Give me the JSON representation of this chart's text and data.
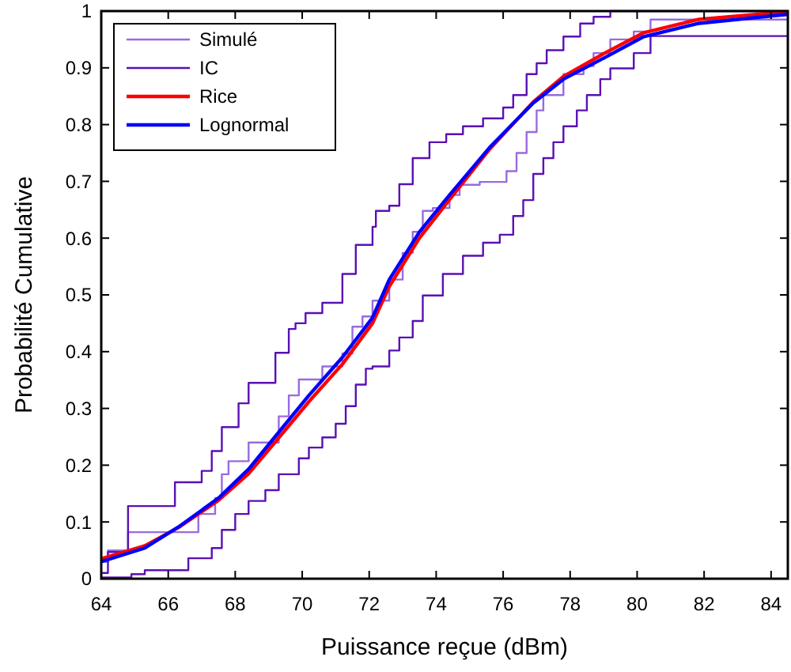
{
  "chart_data": {
    "type": "step",
    "xlabel": "Puissance reçue (dBm)",
    "ylabel": "Probabilité Cumulative",
    "xlim": [
      64,
      84.5
    ],
    "xticks": [
      64,
      66,
      68,
      70,
      72,
      74,
      76,
      78,
      80,
      82,
      84
    ],
    "ylim": [
      0,
      1
    ],
    "yticks": [
      0,
      0.1,
      0.2,
      0.3,
      0.4,
      0.5,
      0.6,
      0.7,
      0.8,
      0.9,
      1
    ],
    "grid": false,
    "legend": "top left",
    "series": [
      {
        "name": "Simulé",
        "color": "#9a6ae0",
        "x": [
          64.0,
          64.2,
          64.8,
          66.9,
          67.4,
          67.6,
          67.8,
          68.4,
          69.3,
          69.6,
          69.9,
          70.6,
          71.2,
          71.5,
          71.8,
          72.1,
          72.6,
          73.0,
          73.3,
          73.6,
          73.9,
          74.4,
          74.7,
          75.3,
          76.1,
          76.4,
          76.7,
          77.0,
          77.2,
          77.8,
          78.4,
          78.7,
          79.2,
          79.9,
          80.4,
          84.5
        ],
        "values": [
          0.03,
          0.05,
          0.082,
          0.114,
          0.142,
          0.184,
          0.207,
          0.24,
          0.286,
          0.323,
          0.351,
          0.374,
          0.397,
          0.444,
          0.462,
          0.49,
          0.527,
          0.574,
          0.611,
          0.648,
          0.653,
          0.676,
          0.694,
          0.699,
          0.718,
          0.75,
          0.787,
          0.825,
          0.852,
          0.889,
          0.903,
          0.926,
          0.95,
          0.964,
          0.985,
          0.985
        ]
      },
      {
        "name": "IC",
        "color": "#5a10b4",
        "x": [
          64.0,
          64.2,
          64.8,
          66.2,
          67.0,
          67.3,
          67.6,
          68.1,
          68.4,
          69.2,
          69.6,
          69.8,
          70.1,
          70.6,
          71.2,
          71.6,
          72.1,
          72.2,
          72.6,
          72.9,
          73.3,
          73.8,
          74.3,
          74.8,
          75.4,
          76.0,
          76.3,
          76.7,
          77.0,
          77.3,
          77.8,
          78.3,
          78.7,
          79.2,
          84.5
        ],
        "values": [
          0.01,
          0.047,
          0.128,
          0.17,
          0.19,
          0.225,
          0.267,
          0.309,
          0.345,
          0.398,
          0.44,
          0.45,
          0.468,
          0.486,
          0.537,
          0.588,
          0.62,
          0.648,
          0.657,
          0.695,
          0.741,
          0.769,
          0.783,
          0.797,
          0.811,
          0.83,
          0.852,
          0.889,
          0.908,
          0.931,
          0.955,
          0.978,
          0.99,
          1.0,
          1.0
        ]
      },
      {
        "color": "#5a10b4",
        "x": [
          64.0,
          64.9,
          65.3,
          66.6,
          67.3,
          67.6,
          68.0,
          68.4,
          68.9,
          69.3,
          69.9,
          70.2,
          70.6,
          71.0,
          71.3,
          71.6,
          71.9,
          72.1,
          72.6,
          72.9,
          73.3,
          73.6,
          74.2,
          74.8,
          75.4,
          75.9,
          76.3,
          76.6,
          76.9,
          77.2,
          77.5,
          77.8,
          78.2,
          78.5,
          78.9,
          79.2,
          79.9,
          80.4,
          84.5
        ],
        "values": [
          0.002,
          0.008,
          0.015,
          0.036,
          0.054,
          0.086,
          0.114,
          0.137,
          0.156,
          0.184,
          0.212,
          0.231,
          0.249,
          0.273,
          0.304,
          0.342,
          0.37,
          0.374,
          0.402,
          0.425,
          0.454,
          0.499,
          0.537,
          0.569,
          0.592,
          0.606,
          0.639,
          0.667,
          0.713,
          0.741,
          0.769,
          0.797,
          0.825,
          0.852,
          0.88,
          0.899,
          0.926,
          0.956,
          0.956
        ]
      },
      {
        "name": "Rice",
        "type": "line",
        "color": "#ff0000",
        "x": [
          64,
          65.3,
          66.3,
          67.5,
          68.4,
          69.3,
          70.2,
          71.2,
          72.1,
          72.6,
          73.5,
          74.4,
          75.6,
          76.9,
          77.8,
          79,
          80.2,
          81.8,
          84.1,
          84.5
        ],
        "values": [
          0.035,
          0.058,
          0.09,
          0.138,
          0.185,
          0.248,
          0.312,
          0.378,
          0.45,
          0.515,
          0.6,
          0.668,
          0.757,
          0.84,
          0.885,
          0.925,
          0.962,
          0.985,
          0.997,
          0.998
        ]
      },
      {
        "name": "Lognormal",
        "type": "line",
        "color": "#0000ff",
        "x": [
          64,
          65.3,
          66.3,
          67.5,
          68.4,
          69.3,
          70.2,
          71.2,
          72.1,
          72.6,
          73.5,
          74.4,
          75.6,
          76.9,
          77.8,
          79,
          80.2,
          81.8,
          84.1,
          84.5
        ],
        "values": [
          0.03,
          0.054,
          0.091,
          0.142,
          0.193,
          0.258,
          0.323,
          0.39,
          0.46,
          0.527,
          0.611,
          0.676,
          0.76,
          0.838,
          0.88,
          0.917,
          0.955,
          0.978,
          0.992,
          0.994
        ]
      }
    ]
  }
}
